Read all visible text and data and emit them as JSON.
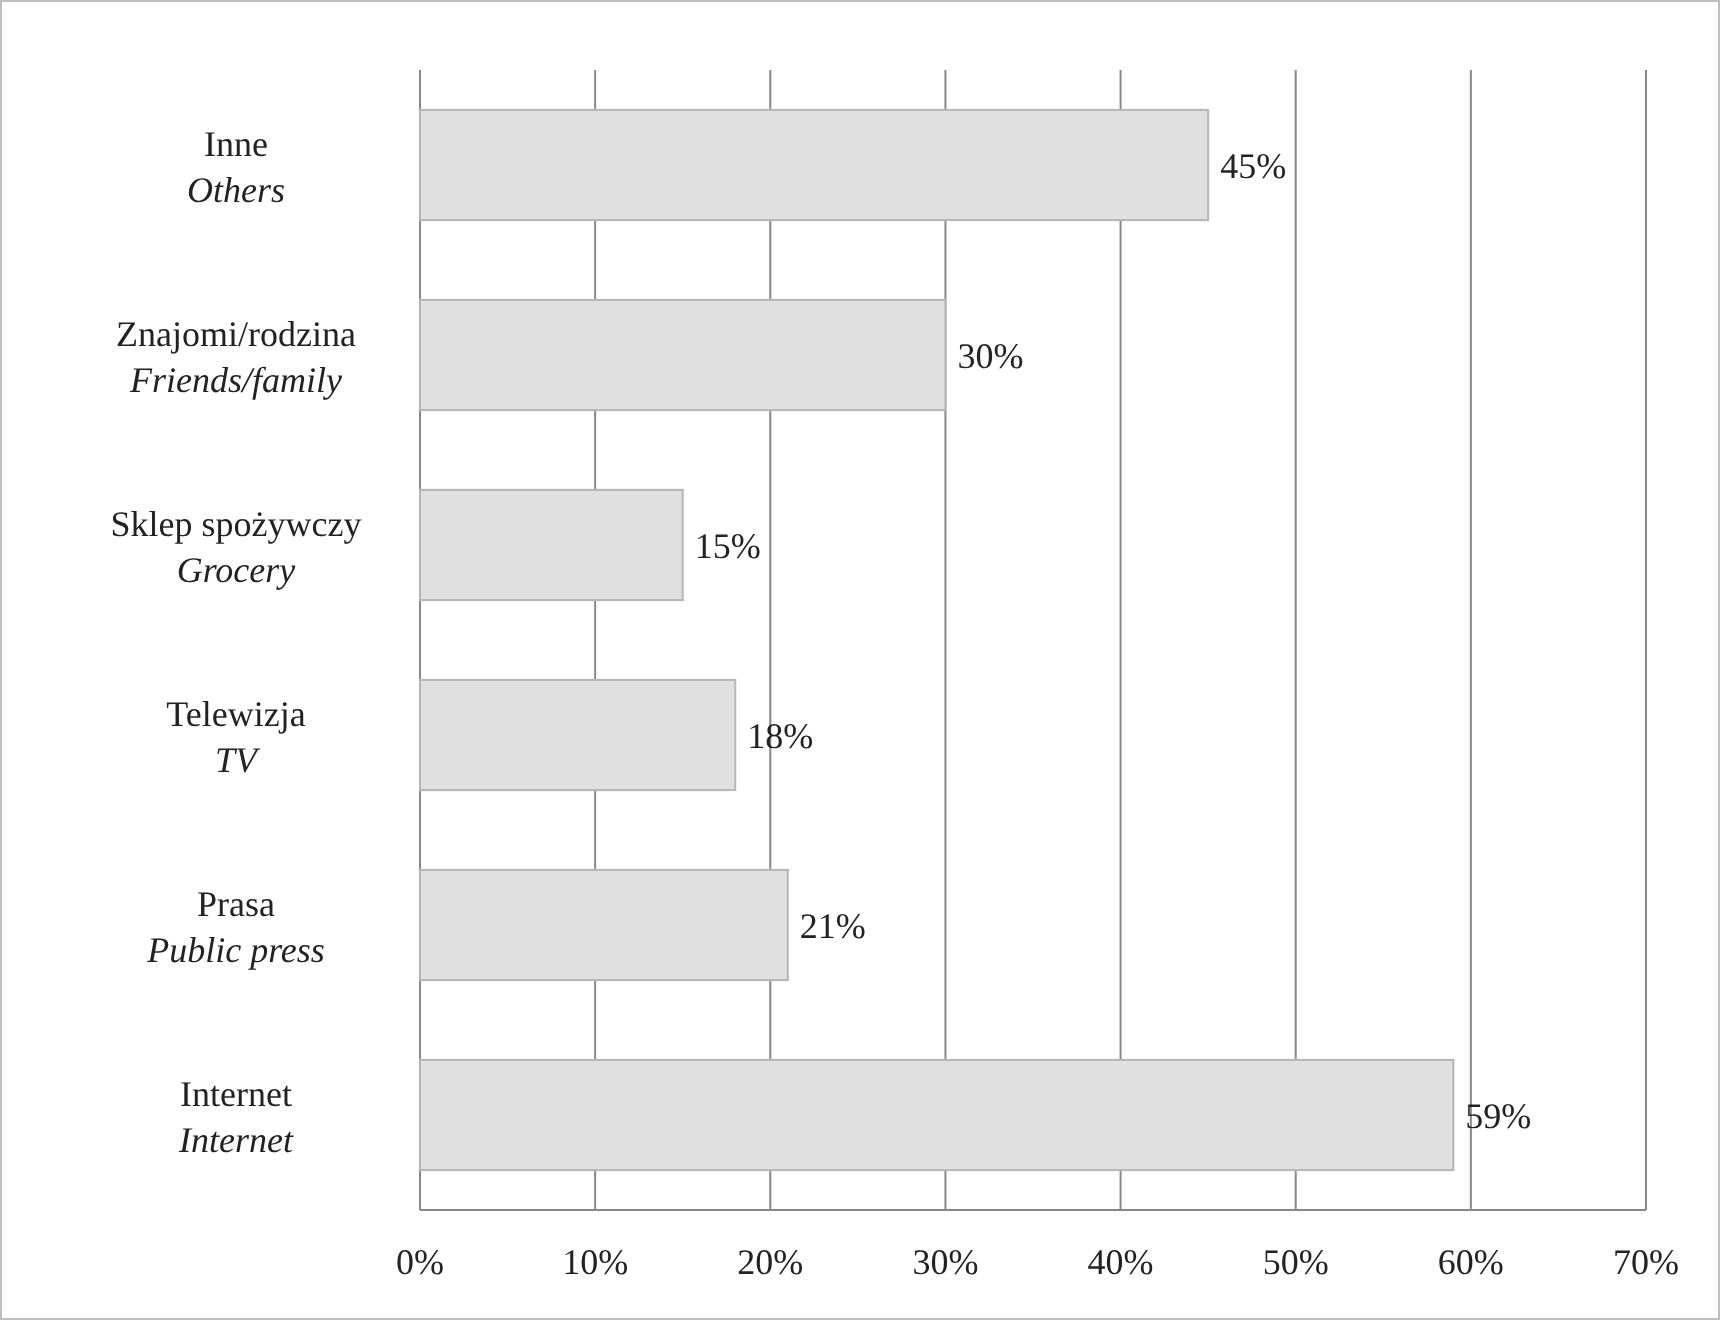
{
  "chart_data": {
    "type": "bar",
    "orientation": "horizontal",
    "categories": [
      "Inne\nOthers",
      "Znajomi/rodzina\nFriends/family",
      "Sklep spożywczy\nGrocery",
      "Telewizja\nTV",
      "Prasa\nPublic press",
      "Internet\nInternet"
    ],
    "values": [
      45,
      30,
      15,
      18,
      21,
      59
    ],
    "value_labels": [
      "45%",
      "30%",
      "15%",
      "18%",
      "21%",
      "59%"
    ],
    "color": "#e0e0e0",
    "xlim": [
      0,
      70
    ],
    "xticks": [
      {
        "value": 0,
        "label": "0%"
      },
      {
        "value": 10,
        "label": "10%"
      },
      {
        "value": 20,
        "label": "20%"
      },
      {
        "value": 30,
        "label": "30%"
      },
      {
        "value": 40,
        "label": "40%"
      },
      {
        "value": 50,
        "label": "50%"
      },
      {
        "value": 60,
        "label": "60%"
      },
      {
        "value": 70,
        "label": "70%"
      }
    ],
    "grid": "x"
  }
}
